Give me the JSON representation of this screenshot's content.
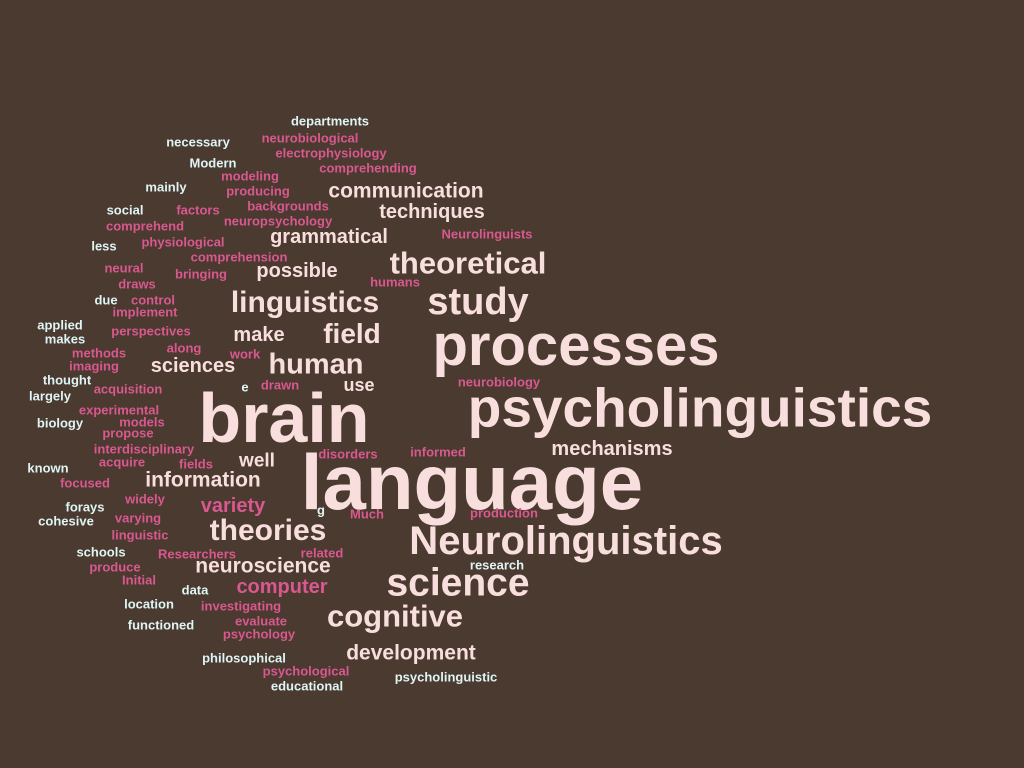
{
  "palette": {
    "background": "#4a3a2f",
    "light": "#f9dede",
    "pink": "#d9588f",
    "cyan": "#dff4f4"
  },
  "words": [
    {
      "text": "language",
      "tone": "light"
    },
    {
      "text": "brain",
      "tone": "light"
    },
    {
      "text": "psycholinguistics",
      "tone": "light"
    },
    {
      "text": "processes",
      "tone": "light"
    },
    {
      "text": "Neurolinguistics",
      "tone": "light"
    },
    {
      "text": "science",
      "tone": "light"
    },
    {
      "text": "study",
      "tone": "light"
    },
    {
      "text": "cognitive",
      "tone": "light"
    },
    {
      "text": "theoretical",
      "tone": "light"
    },
    {
      "text": "linguistics",
      "tone": "light"
    },
    {
      "text": "human",
      "tone": "light"
    },
    {
      "text": "theories",
      "tone": "light"
    },
    {
      "text": "field",
      "tone": "light"
    },
    {
      "text": "neuroscience",
      "tone": "light"
    },
    {
      "text": "information",
      "tone": "light"
    },
    {
      "text": "mechanisms",
      "tone": "light"
    },
    {
      "text": "development",
      "tone": "light"
    },
    {
      "text": "communication",
      "tone": "light"
    },
    {
      "text": "techniques",
      "tone": "light"
    },
    {
      "text": "grammatical",
      "tone": "light"
    },
    {
      "text": "possible",
      "tone": "light"
    },
    {
      "text": "make",
      "tone": "light"
    },
    {
      "text": "sciences",
      "tone": "light"
    },
    {
      "text": "well",
      "tone": "light"
    },
    {
      "text": "use",
      "tone": "light"
    },
    {
      "text": "variety",
      "tone": "pink"
    },
    {
      "text": "computer",
      "tone": "pink"
    },
    {
      "text": "departments",
      "tone": "cyan"
    },
    {
      "text": "necessary",
      "tone": "cyan"
    },
    {
      "text": "neurobiological",
      "tone": "pink"
    },
    {
      "text": "electrophysiology",
      "tone": "pink"
    },
    {
      "text": "Modern",
      "tone": "cyan"
    },
    {
      "text": "comprehending",
      "tone": "pink"
    },
    {
      "text": "modeling",
      "tone": "pink"
    },
    {
      "text": "mainly",
      "tone": "cyan"
    },
    {
      "text": "producing",
      "tone": "pink"
    },
    {
      "text": "backgrounds",
      "tone": "pink"
    },
    {
      "text": "social",
      "tone": "cyan"
    },
    {
      "text": "factors",
      "tone": "pink"
    },
    {
      "text": "neuropsychology",
      "tone": "pink"
    },
    {
      "text": "comprehend",
      "tone": "pink"
    },
    {
      "text": "Neurolinguists",
      "tone": "pink"
    },
    {
      "text": "less",
      "tone": "cyan"
    },
    {
      "text": "physiological",
      "tone": "pink"
    },
    {
      "text": "comprehension",
      "tone": "pink"
    },
    {
      "text": "neural",
      "tone": "pink"
    },
    {
      "text": "bringing",
      "tone": "pink"
    },
    {
      "text": "humans",
      "tone": "pink"
    },
    {
      "text": "draws",
      "tone": "pink"
    },
    {
      "text": "due",
      "tone": "cyan"
    },
    {
      "text": "control",
      "tone": "pink"
    },
    {
      "text": "implement",
      "tone": "pink"
    },
    {
      "text": "applied",
      "tone": "cyan"
    },
    {
      "text": "makes",
      "tone": "cyan"
    },
    {
      "text": "perspectives",
      "tone": "pink"
    },
    {
      "text": "along",
      "tone": "pink"
    },
    {
      "text": "methods",
      "tone": "pink"
    },
    {
      "text": "work",
      "tone": "pink"
    },
    {
      "text": "imaging",
      "tone": "pink"
    },
    {
      "text": "models",
      "tone": "pink"
    },
    {
      "text": "thought",
      "tone": "cyan"
    },
    {
      "text": "e",
      "tone": "cyan"
    },
    {
      "text": "drawn",
      "tone": "pink"
    },
    {
      "text": "neurobiology",
      "tone": "pink"
    },
    {
      "text": "acquisition",
      "tone": "pink"
    },
    {
      "text": "largely",
      "tone": "cyan"
    },
    {
      "text": "experimental",
      "tone": "pink"
    },
    {
      "text": "biology",
      "tone": "cyan"
    },
    {
      "text": "propose",
      "tone": "pink"
    },
    {
      "text": "interdisciplinary",
      "tone": "pink"
    },
    {
      "text": "disorders",
      "tone": "pink"
    },
    {
      "text": "informed",
      "tone": "pink"
    },
    {
      "text": "known",
      "tone": "cyan"
    },
    {
      "text": "acquire",
      "tone": "pink"
    },
    {
      "text": "fields",
      "tone": "pink"
    },
    {
      "text": "focused",
      "tone": "pink"
    },
    {
      "text": "widely",
      "tone": "pink"
    },
    {
      "text": "forays",
      "tone": "cyan"
    },
    {
      "text": "g",
      "tone": "cyan"
    },
    {
      "text": "Much",
      "tone": "pink"
    },
    {
      "text": "production",
      "tone": "pink"
    },
    {
      "text": "cohesive",
      "tone": "cyan"
    },
    {
      "text": "varying",
      "tone": "pink"
    },
    {
      "text": "linguistic",
      "tone": "pink"
    },
    {
      "text": "schools",
      "tone": "cyan"
    },
    {
      "text": "Researchers",
      "tone": "pink"
    },
    {
      "text": "related",
      "tone": "pink"
    },
    {
      "text": "produce",
      "tone": "pink"
    },
    {
      "text": "research",
      "tone": "cyan"
    },
    {
      "text": "Initial",
      "tone": "pink"
    },
    {
      "text": "data",
      "tone": "cyan"
    },
    {
      "text": "location",
      "tone": "cyan"
    },
    {
      "text": "investigating",
      "tone": "pink"
    },
    {
      "text": "functioned",
      "tone": "cyan"
    },
    {
      "text": "evaluate",
      "tone": "pink"
    },
    {
      "text": "psychology",
      "tone": "pink"
    },
    {
      "text": "philosophical",
      "tone": "cyan"
    },
    {
      "text": "psychological",
      "tone": "pink"
    },
    {
      "text": "psycholinguistic",
      "tone": "cyan"
    },
    {
      "text": "educational",
      "tone": "cyan"
    }
  ]
}
